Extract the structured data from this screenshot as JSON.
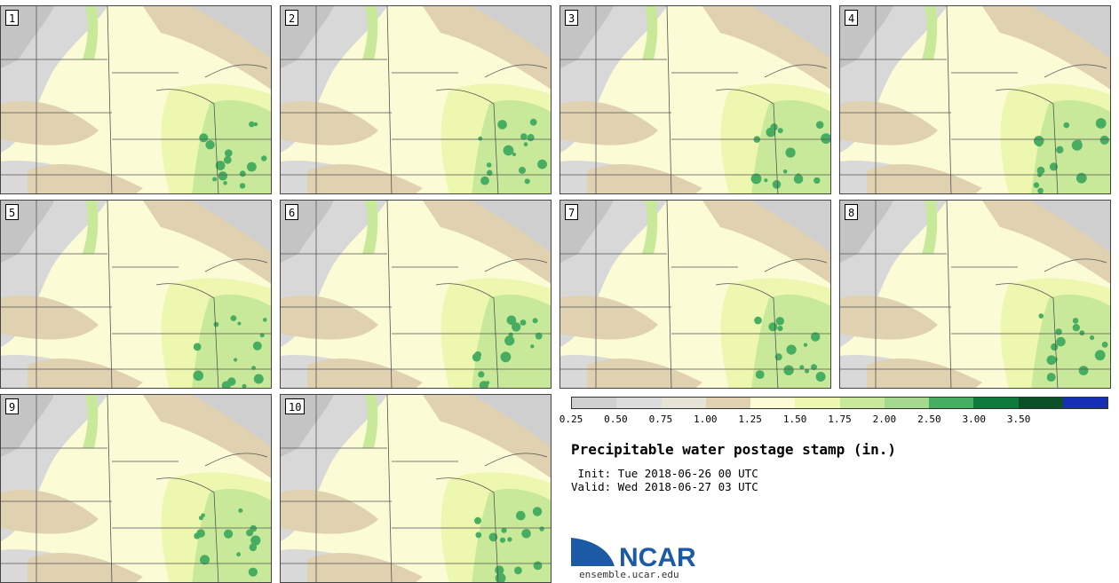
{
  "panels": [
    {
      "label": "1"
    },
    {
      "label": "2"
    },
    {
      "label": "3"
    },
    {
      "label": "4"
    },
    {
      "label": "5"
    },
    {
      "label": "6"
    },
    {
      "label": "7"
    },
    {
      "label": "8"
    },
    {
      "label": "9"
    },
    {
      "label": "10"
    }
  ],
  "colorbar": {
    "ticks": [
      "0.25",
      "0.50",
      "0.75",
      "1.00",
      "1.25",
      "1.50",
      "1.75",
      "2.00",
      "2.50",
      "3.00",
      "3.50"
    ],
    "colors": [
      "#cfcfcf",
      "#dcdcdc",
      "#e6e3d6",
      "#e0d2b0",
      "#fbfbd4",
      "#eef7b0",
      "#c9e99a",
      "#a5d98e",
      "#47ad60",
      "#0f7a3b",
      "#0a4f25",
      "#1530b4"
    ]
  },
  "title": "Precipitable water postage stamp (in.)",
  "init": " Init: Tue 2018-06-26 00 UTC",
  "valid": "Valid: Wed 2018-06-27 03 UTC",
  "logo": {
    "text": "NCAR",
    "url": "ensemble.ucar.edu",
    "color": "#1d5aa6"
  }
}
